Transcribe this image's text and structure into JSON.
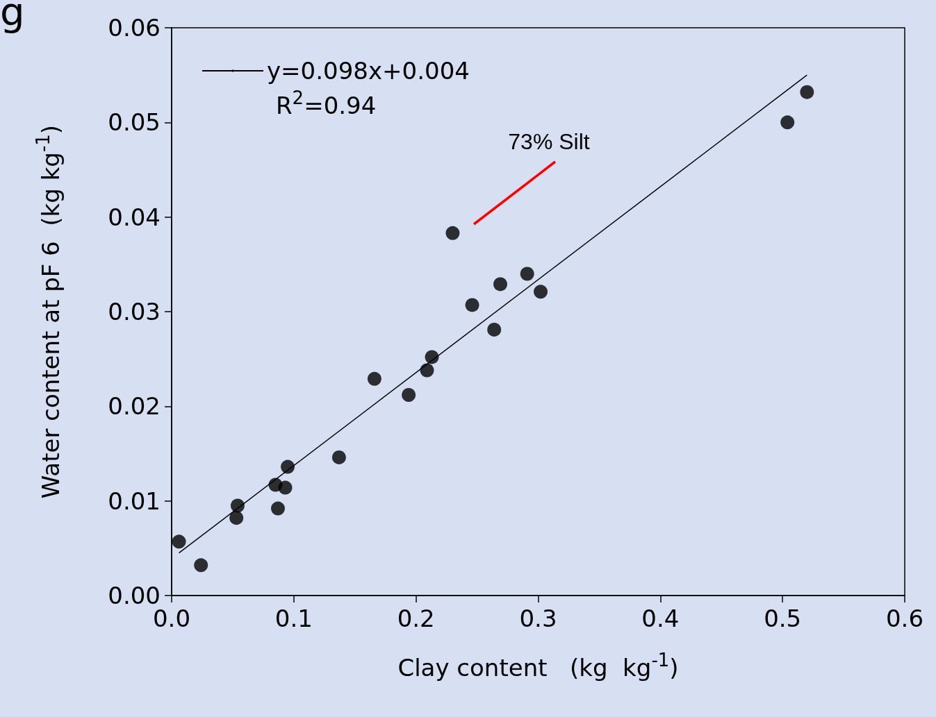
{
  "chart_data": {
    "type": "scatter",
    "xlabel": "Clay content   (kg  kg$^{-1}$)",
    "ylabel": "Water content at pF 6  (kg kg$^{-1}$)",
    "xlim": [
      0,
      0.6
    ],
    "xticks": [
      {
        "value": 0,
        "label": "0.0"
      },
      0.1,
      0.2,
      0.3,
      0.4,
      0.5,
      {
        "value": 0.6,
        "label": "0.6"
      }
    ],
    "ylim": [
      0,
      0.06
    ],
    "yticks": [
      {
        "value": 0,
        "label": "0.00"
      },
      {
        "value": 0.01,
        "label": "0.01"
      },
      {
        "value": 0.02,
        "label": "0.02"
      },
      {
        "value": 0.03,
        "label": "0.03"
      },
      {
        "value": 0.04,
        "label": "0.04"
      },
      {
        "value": 0.05,
        "label": "0.05"
      },
      0.06
    ],
    "marker": "circle",
    "legend": "top left",
    "series": [
      {
        "color": "#000000",
        "x": [
          0.006,
          0.024,
          0.053,
          0.054,
          0.085,
          0.087,
          0.093,
          0.095,
          0.137,
          0.166,
          0.194,
          0.209,
          0.213,
          0.23,
          0.246,
          0.264,
          0.269,
          0.291,
          0.302,
          0.504,
          0.52
        ],
        "values": [
          0.0057,
          0.0032,
          0.0082,
          0.0095,
          0.0117,
          0.0092,
          0.0114,
          0.0136,
          0.0146,
          0.0229,
          0.0212,
          0.0238,
          0.0252,
          0.0383,
          0.0307,
          0.0281,
          0.0329,
          0.034,
          0.0321,
          0.05,
          0.0532
        ]
      },
      {
        "type": "line",
        "name": "y=0.098x+0.004",
        "color": "#000000",
        "marker": "none",
        "x": [
          0.006,
          0.52
        ],
        "values": [
          0.0045,
          0.055
        ]
      }
    ],
    "annotations": [
      "g",
      "R$^{2}$=0.94",
      "73% Silt"
    ]
  }
}
